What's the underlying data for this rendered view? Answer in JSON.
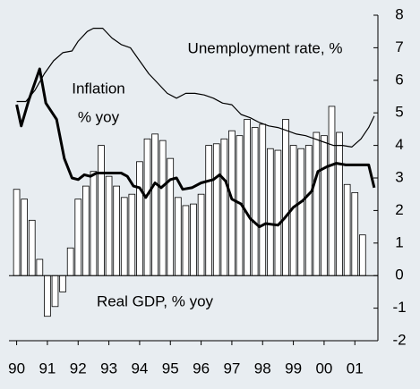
{
  "chart_data": {
    "type": "combo",
    "annotations": [
      "Unemployment rate, %",
      "Inflation",
      "% yoy",
      "Real GDP, % yoy"
    ],
    "xlim": [
      1989.75,
      2001.75
    ],
    "xticks": [
      {
        "value": 1990,
        "label": "90"
      },
      {
        "value": 1991,
        "label": "91"
      },
      {
        "value": 1992,
        "label": "92"
      },
      {
        "value": 1993,
        "label": "93"
      },
      {
        "value": 1994,
        "label": "94"
      },
      {
        "value": 1995,
        "label": "95"
      },
      {
        "value": 1996,
        "label": "96"
      },
      {
        "value": 1997,
        "label": "97"
      },
      {
        "value": 1998,
        "label": "98"
      },
      {
        "value": 1999,
        "label": "99"
      },
      {
        "value": 2000,
        "label": "00"
      },
      {
        "value": 2001,
        "label": "01"
      }
    ],
    "ylim": [
      -2,
      8
    ],
    "yticks": [
      -2,
      -1,
      0,
      1,
      2,
      3,
      4,
      5,
      6,
      7,
      8
    ],
    "background": "#e8edf1",
    "series": [
      {
        "name": "Real GDP, % yoy",
        "type": "bar",
        "color": "#ffffff",
        "x": [
          1990,
          1990.25,
          1990.5,
          1990.75,
          1991,
          1991.25,
          1991.5,
          1991.75,
          1992,
          1992.25,
          1992.5,
          1992.75,
          1993,
          1993.25,
          1993.5,
          1993.75,
          1994,
          1994.25,
          1994.5,
          1994.75,
          1995,
          1995.25,
          1995.5,
          1995.75,
          1996,
          1996.25,
          1996.5,
          1996.75,
          1997,
          1997.25,
          1997.5,
          1997.75,
          1998,
          1998.25,
          1998.5,
          1998.75,
          1999,
          1999.25,
          1999.5,
          1999.75,
          2000,
          2000.25,
          2000.5,
          2000.75,
          2001,
          2001.25
        ],
        "values": [
          2.65,
          2.35,
          1.7,
          0.5,
          -1.25,
          -0.95,
          -0.5,
          0.85,
          2.35,
          2.75,
          3.2,
          4.0,
          3.05,
          2.75,
          2.4,
          2.5,
          3.5,
          4.2,
          4.35,
          4.15,
          3.6,
          2.4,
          2.15,
          2.2,
          2.5,
          4.0,
          4.05,
          4.2,
          4.45,
          4.3,
          4.8,
          4.55,
          4.65,
          3.9,
          3.85,
          4.8,
          4.0,
          3.9,
          4.0,
          4.4,
          4.3,
          5.2,
          4.4,
          2.8,
          2.55,
          1.25
        ]
      },
      {
        "name": "Unemployment rate, %",
        "type": "line",
        "color": "#000000",
        "width": 1.2,
        "x": [
          1990.0,
          1990.3,
          1990.6,
          1990.9,
          1991.2,
          1991.5,
          1991.8,
          1992.0,
          1992.3,
          1992.5,
          1992.8,
          1993.1,
          1993.4,
          1993.7,
          1994.0,
          1994.3,
          1994.6,
          1994.9,
          1995.2,
          1995.5,
          1995.8,
          1996.1,
          1996.4,
          1996.7,
          1997.0,
          1997.3,
          1997.6,
          1997.9,
          1998.2,
          1998.5,
          1998.8,
          1999.1,
          1999.4,
          1999.7,
          2000.0,
          2000.3,
          2000.6,
          2000.9,
          2001.2,
          2001.45,
          2001.63
        ],
        "values": [
          5.35,
          5.35,
          5.7,
          6.2,
          6.6,
          6.85,
          6.9,
          7.2,
          7.5,
          7.6,
          7.6,
          7.3,
          7.1,
          7.0,
          6.6,
          6.2,
          5.9,
          5.6,
          5.45,
          5.6,
          5.6,
          5.55,
          5.45,
          5.3,
          5.25,
          4.95,
          4.85,
          4.7,
          4.6,
          4.55,
          4.45,
          4.35,
          4.3,
          4.2,
          4.1,
          4.0,
          4.0,
          3.95,
          4.2,
          4.55,
          4.9
        ]
      },
      {
        "name": "Inflation % yoy",
        "type": "line",
        "color": "#000000",
        "width": 3,
        "x": [
          1990.0,
          1990.15,
          1990.4,
          1990.75,
          1990.95,
          1991.3,
          1991.55,
          1991.8,
          1992.0,
          1992.2,
          1992.4,
          1992.6,
          1993.0,
          1993.4,
          1993.6,
          1993.8,
          1994.0,
          1994.2,
          1994.5,
          1994.7,
          1995.0,
          1995.2,
          1995.4,
          1995.7,
          1996.0,
          1996.4,
          1996.6,
          1996.8,
          1997.0,
          1997.3,
          1997.6,
          1997.9,
          1998.1,
          1998.5,
          1998.7,
          1999.0,
          1999.3,
          1999.6,
          1999.8,
          2000.1,
          2000.4,
          2000.7,
          2001.0,
          2001.2,
          2001.45,
          2001.63
        ],
        "values": [
          5.25,
          4.6,
          5.4,
          6.35,
          5.3,
          4.8,
          3.6,
          3.0,
          2.95,
          3.1,
          3.05,
          3.15,
          3.15,
          3.15,
          3.05,
          2.75,
          2.7,
          2.4,
          2.85,
          2.7,
          2.95,
          3.0,
          2.65,
          2.7,
          2.85,
          2.95,
          3.1,
          2.9,
          2.35,
          2.2,
          1.75,
          1.5,
          1.6,
          1.55,
          1.75,
          2.1,
          2.3,
          2.6,
          3.2,
          3.35,
          3.45,
          3.4,
          3.4,
          3.4,
          3.4,
          2.7
        ]
      }
    ]
  }
}
